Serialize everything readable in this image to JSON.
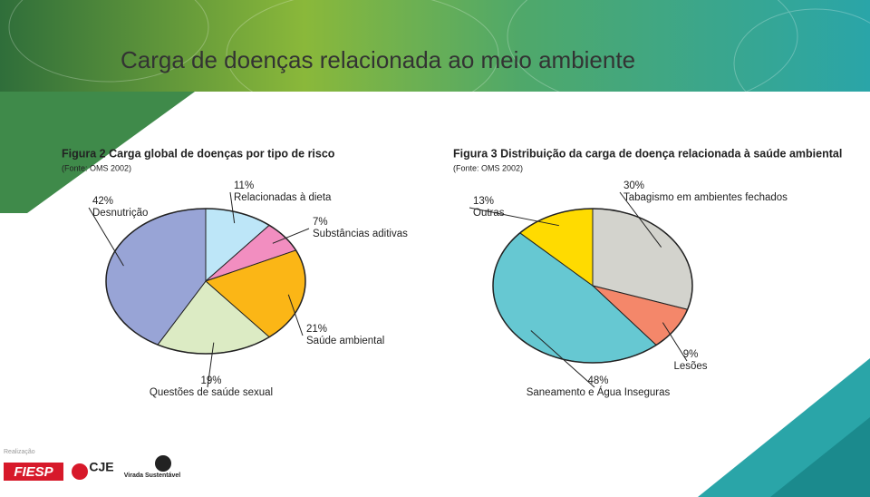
{
  "slide": {
    "title": "Carga de doenças relacionada ao meio ambiente",
    "footer": {
      "label": "Realização",
      "logos": [
        "FIESP",
        "CJE",
        "Virada Sustentável"
      ]
    }
  },
  "chart_data": [
    {
      "type": "pie",
      "title": "Figura 2  Carga global de doenças por tipo de risco",
      "subtitle": "(Fonte: OMS 2002)",
      "categories": [
        "Relacionadas à dieta",
        "Substâncias aditivas",
        "Saúde ambiental",
        "Questões de saúde sexual",
        "Desnutrição"
      ],
      "values": [
        11,
        7,
        21,
        19,
        42
      ],
      "value_labels": [
        "11%",
        "7%",
        "21%",
        "19%",
        "42%"
      ],
      "colors": [
        "#bde6f8",
        "#f28ec0",
        "#fbb616",
        "#dcebc4",
        "#98a4d6"
      ]
    },
    {
      "type": "pie",
      "title": "Figura 3  Distribuição da carga de doença relacionada à saúde ambiental",
      "subtitle": "(Fonte: OMS 2002)",
      "categories": [
        "Tabagismo em ambientes fechados",
        "Lesões",
        "Saneamento e Água Inseguras",
        "Outras"
      ],
      "values": [
        30,
        9,
        48,
        13
      ],
      "value_labels": [
        "30%",
        "9%",
        "48%",
        "13%"
      ],
      "colors": [
        "#d3d3cd",
        "#f4876a",
        "#66c8d2",
        "#ffdb00"
      ]
    }
  ]
}
